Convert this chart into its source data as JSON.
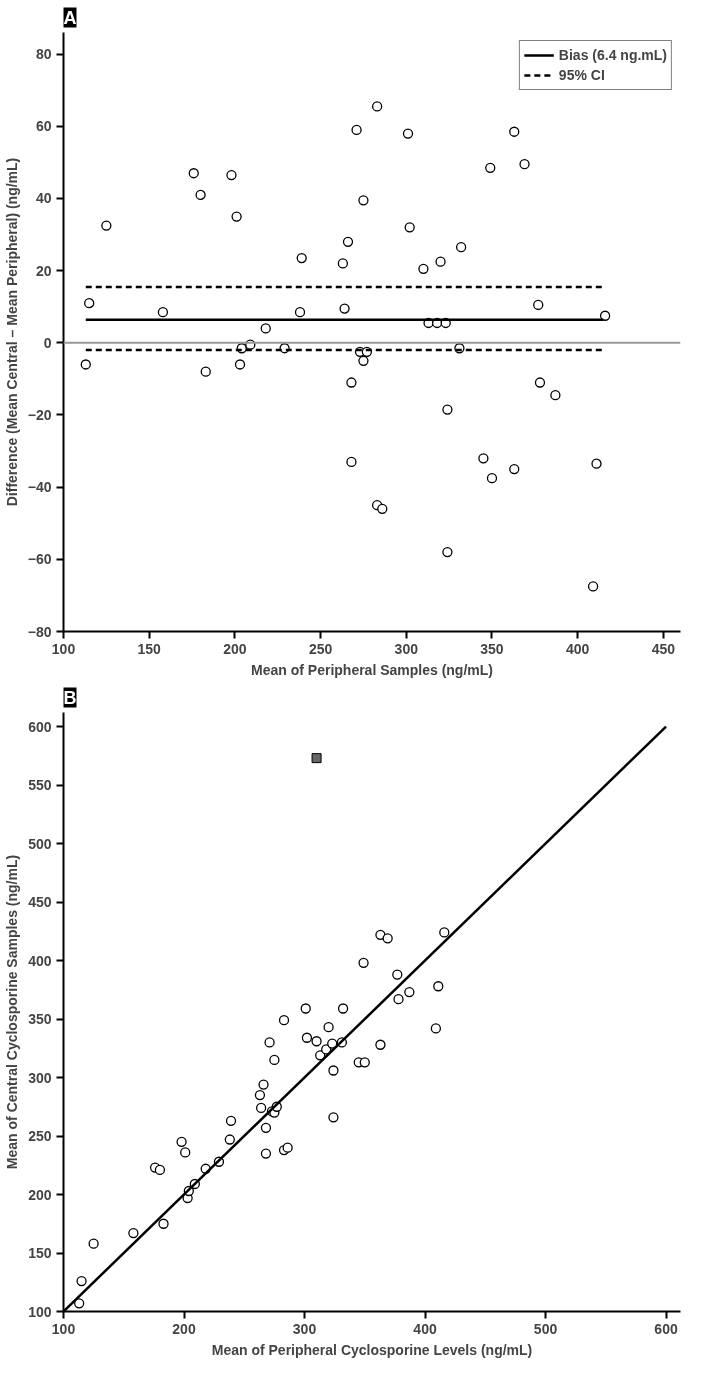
{
  "chart_data": [
    {
      "type": "scatter",
      "title": "A",
      "xlabel": "Mean of Peripheral Samples (ng/mL)",
      "ylabel": "Difference (Mean Central – Mean Peripheral) (ng/mL)",
      "xlim": [
        100,
        460
      ],
      "xticks": [
        100,
        150,
        200,
        250,
        300,
        350,
        400,
        450
      ],
      "ylim": [
        -80,
        86
      ],
      "yticks": [
        -80,
        -60,
        -40,
        -20,
        0,
        20,
        40,
        60,
        80
      ],
      "grid": false,
      "legend": "top right",
      "marker": "circle",
      "ref_lines": [
        {
          "axis": "y",
          "value": 0,
          "color": "#999999"
        }
      ],
      "series": [
        {
          "color": "#000000",
          "x": [
            113,
            115,
            125,
            158,
            176,
            180,
            183,
            198,
            201,
            203,
            204,
            209,
            218,
            229,
            238,
            239,
            263,
            264,
            266,
            268,
            268,
            271,
            273,
            275,
            275,
            277,
            283,
            283,
            286,
            301,
            302,
            310,
            313,
            318,
            320,
            323,
            324,
            324,
            331,
            332,
            345,
            349,
            350,
            363,
            363,
            369,
            377,
            378,
            387,
            409,
            411,
            416
          ],
          "values": [
            -6,
            11,
            32.5,
            8.5,
            47,
            41,
            -8,
            46.5,
            35,
            -6,
            -1.5,
            -0.5,
            4,
            -1.5,
            8.5,
            23.5,
            22,
            9.5,
            28,
            -11,
            -33,
            59,
            -2.5,
            -5,
            39.5,
            -2.5,
            65.5,
            -45,
            -46,
            58,
            32,
            20.5,
            5.5,
            5.5,
            22.5,
            5.5,
            -18.5,
            -58,
            -1.5,
            26.5,
            -32,
            48.5,
            -37.5,
            58.5,
            -35,
            49.5,
            10.5,
            -11,
            -14.5,
            -67.5,
            -33.5,
            7.5
          ]
        },
        {
          "type": "line",
          "name": "Bias (6.4 ng.mL)",
          "color": "#000000",
          "line_style": "solid",
          "marker": "none",
          "x": [
            113,
            415
          ],
          "values": [
            6.4,
            6.4
          ]
        },
        {
          "type": "line",
          "name": "95% CI",
          "color": "#000000",
          "line_style": "dashed",
          "marker": "none",
          "x": [
            113,
            415
          ],
          "values": [
            15.5,
            15.5
          ]
        },
        {
          "type": "line",
          "color": "#000000",
          "line_style": "dashed",
          "marker": "none",
          "x": [
            113,
            415
          ],
          "values": [
            -2,
            -2
          ]
        }
      ]
    },
    {
      "type": "scatter",
      "title": "B",
      "xlabel": "Mean of Peripheral Cyclosporine Levels (ng/mL)",
      "ylabel": "Mean of Central Cyclosporine Samples (ng/mL)",
      "xlim": [
        100,
        612
      ],
      "xticks": [
        100,
        200,
        300,
        400,
        500,
        600
      ],
      "ylim": [
        100,
        612
      ],
      "yticks": [
        100,
        150,
        200,
        250,
        300,
        350,
        400,
        450,
        500,
        550,
        600
      ],
      "grid": false,
      "marker": "circle",
      "series": [
        {
          "color": "#000000",
          "x": [
            113,
            115,
            125,
            158,
            176,
            180,
            183,
            198,
            201,
            203,
            204,
            209,
            218,
            229,
            238,
            239,
            263,
            264,
            266,
            268,
            268,
            271,
            273,
            275,
            275,
            277,
            283,
            283,
            286,
            301,
            302,
            310,
            313,
            318,
            320,
            323,
            324,
            324,
            331,
            332,
            345,
            349,
            350,
            363,
            363,
            369,
            377,
            378,
            387,
            409,
            411,
            416
          ],
          "values": [
            107,
            126,
            158,
            167,
            223,
            221,
            175,
            245,
            236,
            197,
            203,
            209,
            222,
            228,
            247,
            263,
            285,
            274,
            294,
            257,
            235,
            330,
            271,
            270,
            315,
            275,
            349,
            238,
            240,
            359,
            334,
            331,
            319,
            324,
            343,
            329,
            306,
            266,
            330,
            359,
            313,
            398,
            313,
            422,
            328,
            419,
            388,
            367,
            373,
            342,
            378,
            424
          ]
        },
        {
          "color": "#666666",
          "marker": "square",
          "x": [
            310
          ],
          "values": [
            573
          ]
        },
        {
          "type": "line",
          "color": "#000000",
          "line_style": "solid",
          "marker": "none",
          "x": [
            100,
            600
          ],
          "values": [
            100,
            600
          ]
        }
      ]
    }
  ]
}
